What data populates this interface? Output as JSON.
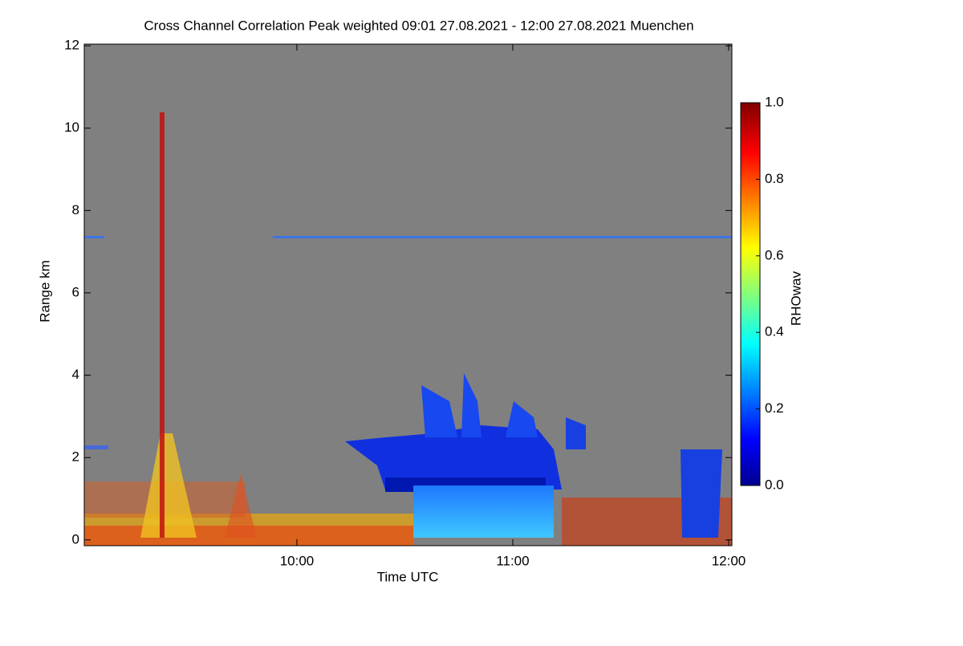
{
  "chart_data": {
    "type": "heatmap",
    "title": "Cross Channel Correlation Peak weighted   09:01 27.08.2021 - 12:00 27.08.2021 Muenchen",
    "x_label": "Time UTC",
    "y_label": "Range km",
    "colorbar_label": "RHOwav",
    "xlim": [
      9.015,
      12.015
    ],
    "xticks": [
      {
        "value": 10,
        "label": "10:00"
      },
      {
        "value": 11,
        "label": "11:00"
      },
      {
        "value": 12,
        "label": "12:00"
      }
    ],
    "ylim": [
      -0.14,
      12.04
    ],
    "yticks": [
      0,
      2,
      4,
      6,
      8,
      10,
      12
    ],
    "clim": [
      0,
      1
    ],
    "cticks": [
      {
        "value": 0,
        "label": "0.0"
      },
      {
        "value": 0.2,
        "label": "0.2"
      },
      {
        "value": 0.4,
        "label": "0.4"
      },
      {
        "value": 0.6,
        "label": "0.6"
      },
      {
        "value": 0.8,
        "label": "0.8"
      },
      {
        "value": 1,
        "label": "1.0"
      }
    ],
    "background_color": "#808080"
  }
}
